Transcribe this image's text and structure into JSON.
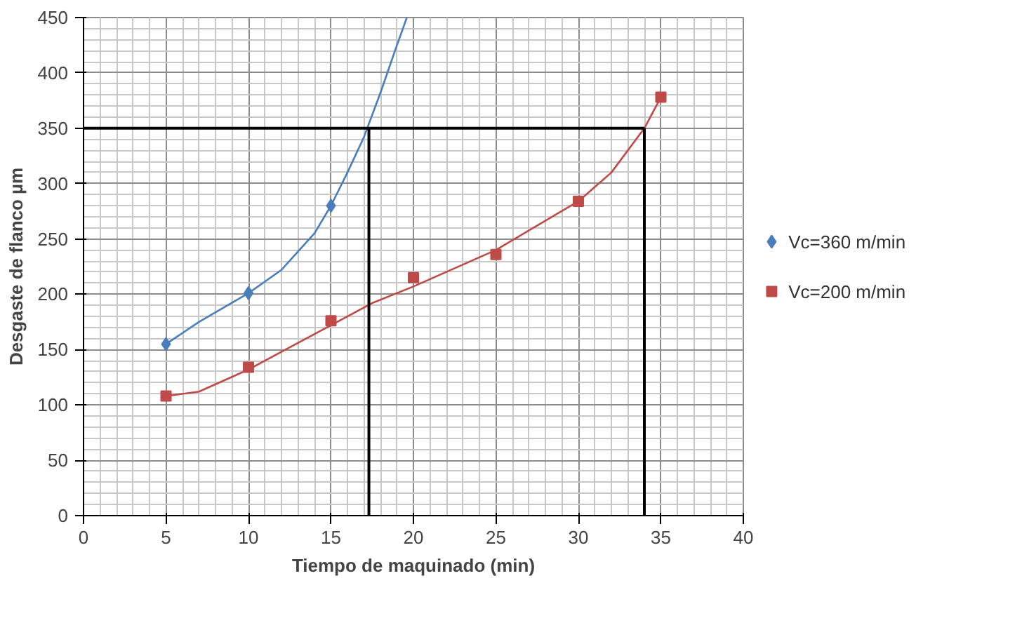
{
  "chart_data": {
    "type": "scatter",
    "xlabel": "Tiempo de maquinado (min)",
    "ylabel": "Desgaste de flanco µm",
    "xlim": [
      0,
      40
    ],
    "xticks": [
      0,
      5,
      10,
      15,
      20,
      25,
      30,
      35,
      40
    ],
    "ylim": [
      0,
      450
    ],
    "yticks": [
      0,
      50,
      100,
      150,
      200,
      250,
      300,
      350,
      400,
      450
    ],
    "grid": true,
    "legend": "right",
    "series": [
      {
        "name": "Vc=360 m/min",
        "color": "#4a7ebb",
        "marker": "diamond",
        "x": [
          5,
          10,
          15
        ],
        "values": [
          155,
          201,
          280
        ]
      },
      {
        "name": "Vc=200 m/min",
        "color": "#be4b48",
        "marker": "square",
        "x": [
          5,
          10,
          15,
          20,
          25,
          30,
          35
        ],
        "values": [
          108,
          134,
          176,
          215,
          236,
          284,
          378
        ]
      },
      {
        "type": "line",
        "color": "#4a7ebb",
        "x": [
          5,
          7,
          10,
          12,
          14,
          15,
          16,
          17,
          18,
          19,
          19.6
        ],
        "values": [
          155,
          175,
          201,
          222,
          255,
          280,
          310,
          342,
          382,
          425,
          450
        ]
      },
      {
        "type": "line",
        "color": "#be4b48",
        "x": [
          5,
          7,
          10,
          12.5,
          15,
          17.5,
          20,
          25,
          30,
          32,
          34,
          35
        ],
        "values": [
          108,
          112,
          132,
          152,
          172,
          192,
          207,
          240,
          284,
          310,
          350,
          378
        ]
      }
    ],
    "ref_lines": [
      {
        "axis": "y",
        "value": 350,
        "color": "#000000"
      },
      {
        "axis": "x",
        "value": 17.3,
        "color": "#000000"
      },
      {
        "axis": "x",
        "value": 34,
        "color": "#000000"
      }
    ]
  }
}
